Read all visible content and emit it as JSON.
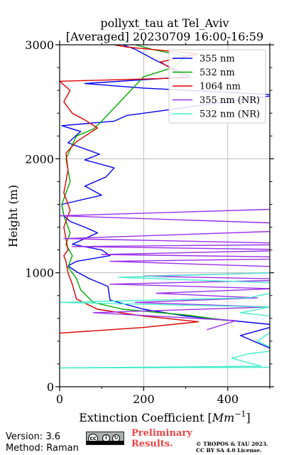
{
  "title_line1": "pollyxt_tau at Tel_Aviv",
  "title_line2": "[Averaged] 20230709 16:00-16:59",
  "footer": {
    "version": "Version: 3.6",
    "method": "Method: Raman",
    "preliminary_line1": "Preliminary",
    "preliminary_line2": "Results.",
    "copyright_line1": "© TROPOS & TAU 2023.",
    "copyright_line2": "CC BY SA 4.0 License."
  },
  "chart_data": {
    "type": "line",
    "title": "pollyxt_tau at Tel_Aviv [Averaged] 20230709 16:00-16:59",
    "xlabel": "Extinction Coefficient [Mm⁻¹]",
    "ylabel": "Height (m)",
    "xlim": [
      0,
      500
    ],
    "ylim": [
      0,
      3000
    ],
    "xticks": [
      0,
      200,
      400
    ],
    "yticks": [
      0,
      1000,
      2000,
      3000
    ],
    "grid": true,
    "legend_position": "top-right",
    "series": [
      {
        "name": "355 nm",
        "color": "#0000ee",
        "points": [
          [
            610,
            165
          ],
          [
            430,
            450
          ],
          [
            520,
            540
          ],
          [
            300,
            620
          ],
          [
            200,
            680
          ],
          [
            120,
            760
          ],
          [
            115,
            880
          ],
          [
            70,
            950
          ],
          [
            40,
            1010
          ],
          [
            20,
            1060
          ],
          [
            40,
            1100
          ],
          [
            120,
            1150
          ],
          [
            100,
            1200
          ],
          [
            30,
            1250
          ],
          [
            60,
            1300
          ],
          [
            90,
            1350
          ],
          [
            60,
            1400
          ],
          [
            25,
            1450
          ],
          [
            10,
            1500
          ],
          [
            5,
            1600
          ],
          [
            100,
            1680
          ],
          [
            60,
            1760
          ],
          [
            110,
            1840
          ],
          [
            130,
            1920
          ],
          [
            60,
            1990
          ],
          [
            95,
            2040
          ],
          [
            20,
            2140
          ],
          [
            50,
            2240
          ],
          [
            5,
            2290
          ],
          [
            130,
            2330
          ],
          [
            160,
            2380
          ],
          [
            520,
            2560
          ],
          [
            200,
            2620
          ],
          [
            60,
            2660
          ],
          [
            310,
            2720
          ],
          [
            230,
            2860
          ],
          [
            180,
            2960
          ],
          [
            150,
            3000
          ]
        ]
      },
      {
        "name": "532 nm",
        "color": "#00aa00",
        "points": [
          [
            400,
            580
          ],
          [
            300,
            630
          ],
          [
            150,
            680
          ],
          [
            80,
            740
          ],
          [
            50,
            850
          ],
          [
            40,
            950
          ],
          [
            20,
            1050
          ],
          [
            30,
            1150
          ],
          [
            15,
            1250
          ],
          [
            25,
            1350
          ],
          [
            10,
            1500
          ],
          [
            5,
            1600
          ],
          [
            25,
            1800
          ],
          [
            15,
            2000
          ],
          [
            40,
            2200
          ],
          [
            80,
            2260
          ],
          [
            95,
            2310
          ],
          [
            200,
            2720
          ],
          [
            270,
            2800
          ],
          [
            300,
            2900
          ],
          [
            220,
            2960
          ],
          [
            180,
            3000
          ]
        ]
      },
      {
        "name": "1064 nm",
        "color": "#dd0000",
        "points": [
          [
            0,
            470
          ],
          [
            200,
            520
          ],
          [
            330,
            570
          ],
          [
            200,
            620
          ],
          [
            90,
            680
          ],
          [
            40,
            770
          ],
          [
            30,
            900
          ],
          [
            20,
            1000
          ],
          [
            15,
            1100
          ],
          [
            10,
            1150
          ],
          [
            20,
            1200
          ],
          [
            15,
            1300
          ],
          [
            10,
            1400
          ],
          [
            25,
            1550
          ],
          [
            10,
            1700
          ],
          [
            20,
            1900
          ],
          [
            15,
            2050
          ],
          [
            40,
            2150
          ],
          [
            90,
            2270
          ],
          [
            60,
            2340
          ],
          [
            30,
            2400
          ],
          [
            10,
            2500
          ],
          [
            25,
            2600
          ],
          [
            0,
            2680
          ],
          [
            300,
            2710
          ],
          [
            240,
            2850
          ],
          [
            330,
            2920
          ],
          [
            160,
            2980
          ],
          [
            130,
            3000
          ]
        ]
      },
      {
        "name": "355 nm (NR)",
        "color": "#9b30e8",
        "points": [
          [
            350,
            500
          ],
          [
            420,
            580
          ],
          [
            80,
            650
          ],
          [
            500,
            700
          ],
          [
            180,
            740
          ],
          [
            470,
            780
          ],
          [
            230,
            820
          ],
          [
            510,
            860
          ],
          [
            120,
            900
          ],
          [
            600,
            940
          ],
          [
            200,
            970
          ],
          [
            510,
            1000
          ],
          [
            540,
            1050
          ],
          [
            120,
            1100
          ],
          [
            700,
            1130
          ],
          [
            100,
            1160
          ],
          [
            600,
            1200
          ],
          [
            30,
            1230
          ],
          [
            650,
            1250
          ],
          [
            10,
            1300
          ],
          [
            800,
            1400
          ],
          [
            0,
            1500
          ],
          [
            800,
            1590
          ]
        ]
      },
      {
        "name": "532 nm (NR)",
        "color": "#44eecc",
        "points": [
          [
            500,
            170
          ],
          [
            0,
            165
          ],
          [
            480,
            180
          ],
          [
            410,
            250
          ],
          [
            450,
            290
          ],
          [
            520,
            320
          ],
          [
            470,
            400
          ],
          [
            550,
            600
          ],
          [
            430,
            650
          ],
          [
            500,
            700
          ],
          [
            0,
            740
          ],
          [
            450,
            780
          ],
          [
            600,
            900
          ],
          [
            140,
            960
          ],
          [
            500,
            1000
          ]
        ]
      }
    ]
  }
}
